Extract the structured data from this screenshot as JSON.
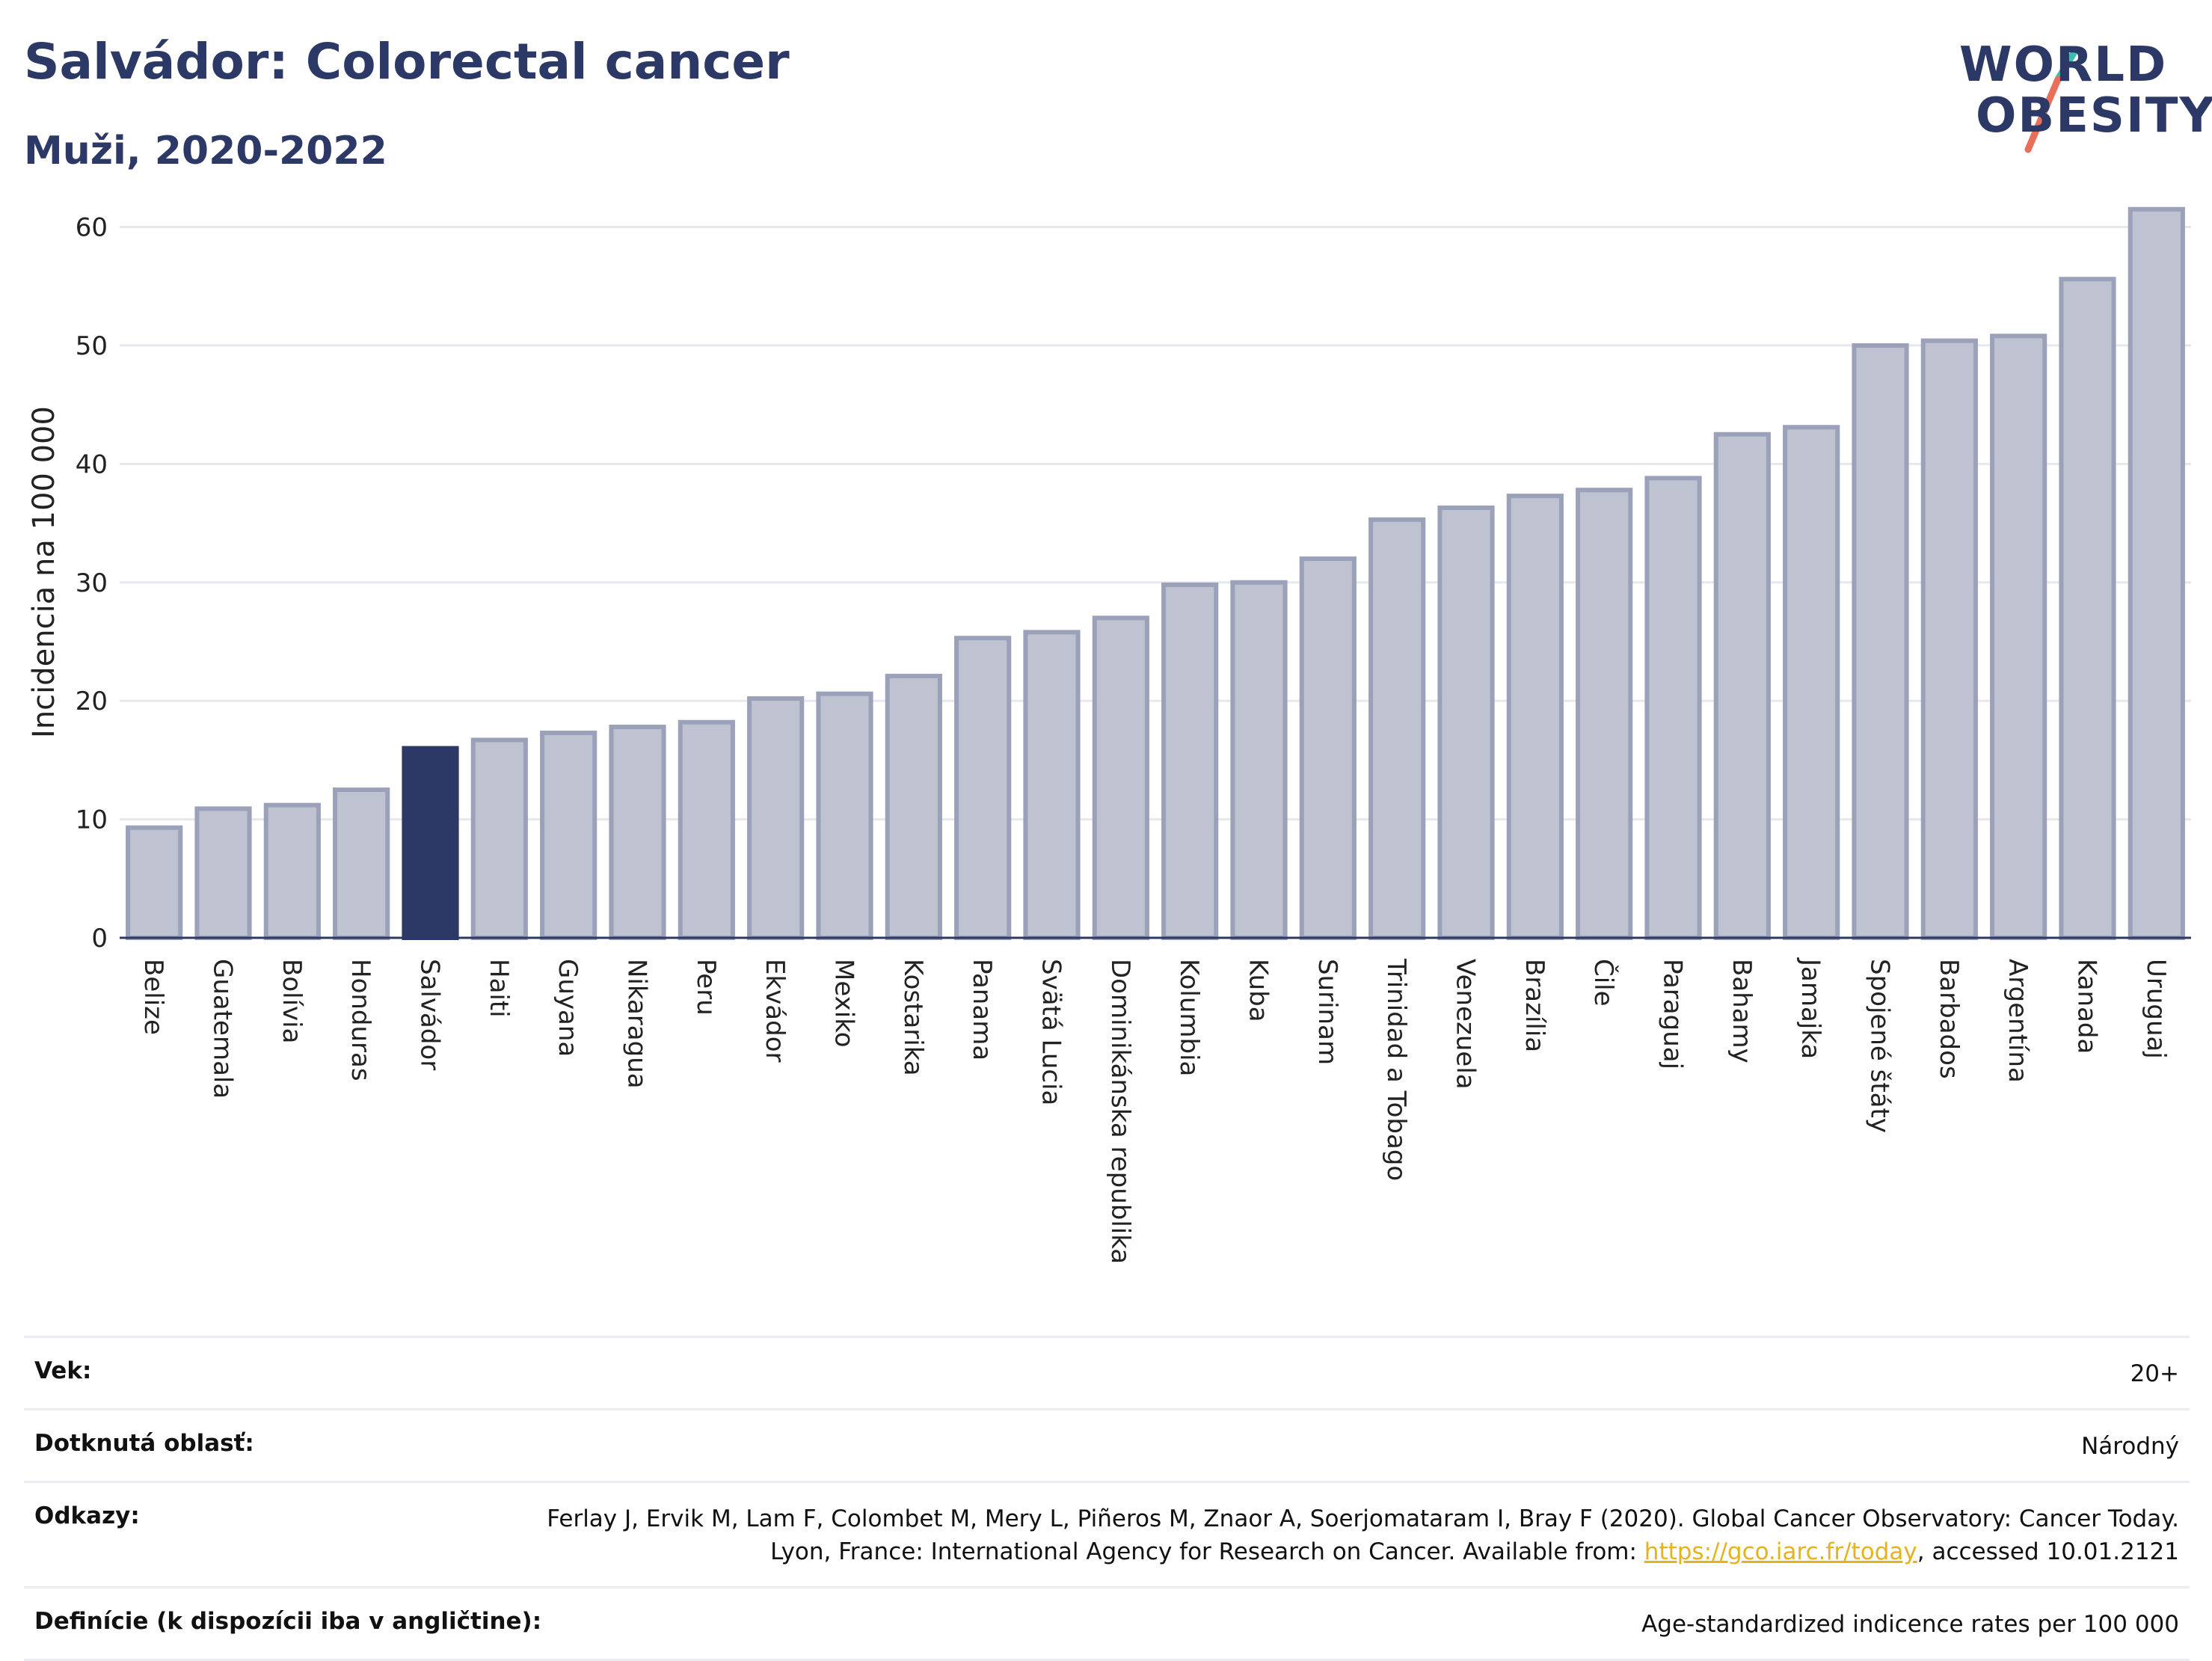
{
  "header": {
    "title": "Salvádor: Colorectal cancer",
    "subtitle": "Muži, 2020-2022"
  },
  "logo": {
    "line1": "WORLD",
    "line2": "OBESITY",
    "colors": {
      "text": "#2c3866",
      "stroke_top": "#39c0b0",
      "stroke_bottom": "#e8705a"
    }
  },
  "colors": {
    "bar": "#bfc3d1",
    "bar_border": "#9aa1b8",
    "highlight": "#2c3866",
    "grid": "#e6e8ee",
    "axis": "#2c3866"
  },
  "chart_data": {
    "type": "bar",
    "ylabel": "Incidencia na 100 000",
    "ylim": [
      0,
      63
    ],
    "yticks": [
      0,
      10,
      20,
      30,
      40,
      50,
      60
    ],
    "grid": true,
    "highlight": "Salvádor",
    "categories": [
      "Belize",
      "Guatemala",
      "Bolívia",
      "Honduras",
      "Salvádor",
      "Haiti",
      "Guyana",
      "Nikaragua",
      "Peru",
      "Ekvádor",
      "Mexiko",
      "Kostarika",
      "Panama",
      "Svätá Lucia",
      "Dominikánska republika",
      "Kolumbia",
      "Kuba",
      "Surinam",
      "Trinidad a Tobago",
      "Venezuela",
      "Brazília",
      "Čile",
      "Paraguaj",
      "Bahamy",
      "Jamajka",
      "Spojené štáty",
      "Barbados",
      "Argentína",
      "Kanada",
      "Uruguaj"
    ],
    "values": [
      9.3,
      10.9,
      11.2,
      12.5,
      16.0,
      16.7,
      17.3,
      17.8,
      18.2,
      20.2,
      20.6,
      22.1,
      25.3,
      25.8,
      27.0,
      29.8,
      30.0,
      32.0,
      35.3,
      36.3,
      37.3,
      37.8,
      38.8,
      42.5,
      43.1,
      50.0,
      50.4,
      50.8,
      55.6,
      61.5
    ]
  },
  "meta": {
    "age_label": "Vek:",
    "age_value": "20+",
    "area_label": "Dotknutá oblasť:",
    "area_value": "Národný",
    "refs_label": "Odkazy:",
    "refs_text": "Ferlay J, Ervik M, Lam F, Colombet M, Mery L, Piñeros M, Znaor A, Soerjomataram I, Bray F (2020). Global Cancer Observatory: Cancer Today. Lyon, France: International Agency for Research on Cancer. Available from: ",
    "refs_link": "https://gco.iarc.fr/today",
    "refs_tail": ", accessed 10.01.2121",
    "def_label": "Definície (k dispozícii iba v angličtine):",
    "def_value": "Age-standardized indicence rates per 100 000"
  }
}
